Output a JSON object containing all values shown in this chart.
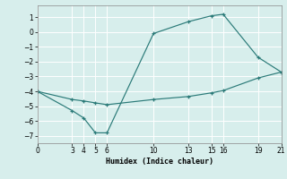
{
  "line1_x": [
    0,
    3,
    4,
    5,
    6,
    10,
    13,
    15,
    16,
    19,
    21
  ],
  "line1_y": [
    -4,
    -5.3,
    -5.8,
    -6.8,
    -6.8,
    -0.1,
    0.7,
    1.1,
    1.2,
    -1.7,
    -2.7
  ],
  "line2_x": [
    0,
    3,
    4,
    5,
    6,
    10,
    13,
    15,
    16,
    19,
    21
  ],
  "line2_y": [
    -4,
    -4.55,
    -4.65,
    -4.78,
    -4.9,
    -4.55,
    -4.35,
    -4.1,
    -3.95,
    -3.1,
    -2.7
  ],
  "color": "#2a7a78",
  "bg_color": "#d7eeec",
  "grid_color": "#ffffff",
  "xlabel": "Humidex (Indice chaleur)",
  "xlim": [
    0,
    21
  ],
  "ylim": [
    -7.5,
    1.8
  ],
  "yticks": [
    1,
    0,
    -1,
    -2,
    -3,
    -4,
    -5,
    -6,
    -7
  ],
  "xticks": [
    0,
    3,
    4,
    5,
    6,
    10,
    13,
    15,
    16,
    19,
    21
  ]
}
